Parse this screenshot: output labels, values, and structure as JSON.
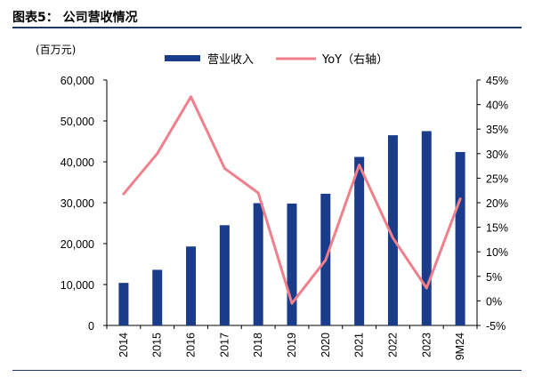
{
  "header": {
    "title": "图表5： 公司营收情况"
  },
  "chart_data": {
    "type": "bar+line",
    "title": "图表5： 公司营收情况",
    "y_left_unit": "(百万元)",
    "categories": [
      "2014",
      "2015",
      "2016",
      "2017",
      "2018",
      "2019",
      "2020",
      "2021",
      "2022",
      "2023",
      "9M24"
    ],
    "series": [
      {
        "name": "营业收入",
        "type": "bar",
        "axis": "left",
        "color": "#1a3c8a",
        "values": [
          10400,
          13600,
          19300,
          24500,
          29900,
          29800,
          32200,
          41200,
          46500,
          47500,
          42400
        ]
      },
      {
        "name": "YoY（右轴）",
        "type": "line",
        "axis": "right",
        "color": "#f07f8c",
        "values": [
          21.8,
          30.0,
          41.6,
          27.0,
          22.0,
          -0.5,
          8.3,
          27.7,
          12.8,
          2.6,
          20.8
        ]
      }
    ],
    "y_left": {
      "min": 0,
      "max": 60000,
      "step": 10000,
      "tick_labels": [
        "0",
        "10,000",
        "20,000",
        "30,000",
        "40,000",
        "50,000",
        "60,000"
      ]
    },
    "y_right": {
      "min": -5,
      "max": 45,
      "step": 5,
      "tick_labels": [
        "-5%",
        "0%",
        "5%",
        "10%",
        "15%",
        "20%",
        "25%",
        "30%",
        "35%",
        "40%",
        "45%"
      ]
    },
    "legend_position": "top",
    "grid": false
  }
}
